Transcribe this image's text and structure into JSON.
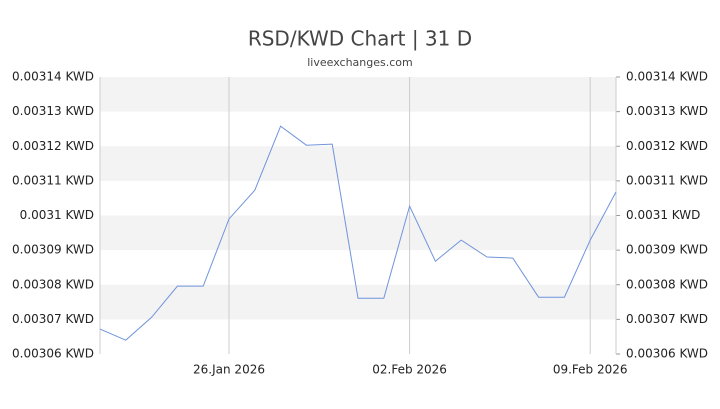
{
  "chart_data": {
    "type": "line",
    "title": "RSD/KWD Chart | 31 D",
    "subtitle": "liveexchanges.com",
    "x": [
      "2026-01-21",
      "2026-01-22",
      "2026-01-23",
      "2026-01-24",
      "2026-01-25",
      "2026-01-26",
      "2026-01-27",
      "2026-01-28",
      "2026-01-29",
      "2026-01-30",
      "2026-01-31",
      "2026-02-01",
      "2026-02-02",
      "2026-02-03",
      "2026-02-04",
      "2026-02-05",
      "2026-02-06",
      "2026-02-07",
      "2026-02-08",
      "2026-02-09",
      "2026-02-10"
    ],
    "values": [
      0.0030672,
      0.003064,
      0.0030706,
      0.0030796,
      0.0030796,
      0.003099,
      0.0031073,
      0.0031258,
      0.0031203,
      0.0031206,
      0.0030761,
      0.0030761,
      0.0031027,
      0.0030868,
      0.0030929,
      0.003088,
      0.0030877,
      0.0030764,
      0.0030764,
      0.0030929,
      0.0031068
    ],
    "color": "#7094dc",
    "xlim": [
      "2026-01-21",
      "2026-02-10"
    ],
    "xticks": [
      {
        "value": "2026-01-26",
        "label": "26.Jan 2026"
      },
      {
        "value": "2026-02-02",
        "label": "02.Feb 2026"
      },
      {
        "value": "2026-02-09",
        "label": "09.Feb 2026"
      }
    ],
    "ylim": [
      0.00306,
      0.00314
    ],
    "yticks": [
      {
        "value": 0.00306,
        "label": "0.00306 KWD"
      },
      {
        "value": 0.00307,
        "label": "0.00307 KWD"
      },
      {
        "value": 0.00308,
        "label": "0.00308 KWD"
      },
      {
        "value": 0.00309,
        "label": "0.00309 KWD"
      },
      {
        "value": 0.0031,
        "label": "0.0031 KWD"
      },
      {
        "value": 0.00311,
        "label": "0.00311 KWD"
      },
      {
        "value": 0.00312,
        "label": "0.00312 KWD"
      },
      {
        "value": 0.00313,
        "label": "0.00313 KWD"
      },
      {
        "value": 0.00314,
        "label": "0.00314 KWD"
      }
    ],
    "grid": true
  }
}
